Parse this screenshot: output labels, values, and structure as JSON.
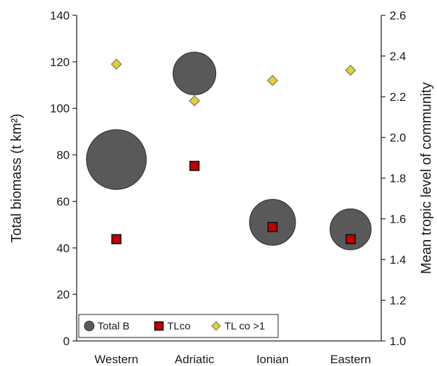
{
  "chart_data": {
    "type": "scatter",
    "categories": [
      "Western",
      "Adriatic",
      "Ionian",
      "Eastern"
    ],
    "y_left": {
      "label": "Total biomass (t km²)",
      "range": [
        0,
        140
      ],
      "ticks": [
        "0",
        "20",
        "40",
        "60",
        "80",
        "100",
        "120",
        "140"
      ]
    },
    "y_right": {
      "label": "Mean tropic level of community",
      "range": [
        1.0,
        2.6
      ],
      "ticks": [
        "1.0",
        "1.2",
        "1.4",
        "1.6",
        "1.8",
        "2.0",
        "2.2",
        "2.4",
        "2.6"
      ]
    },
    "series": [
      {
        "name": "Total B",
        "marker": "bubble",
        "axis": "left",
        "color": "#595959",
        "values": [
          78,
          115,
          51,
          48
        ],
        "bubble_size": [
          1.0,
          0.51,
          0.59,
          0.47
        ]
      },
      {
        "name": "TLco",
        "marker": "square",
        "axis": "right",
        "color": "#c00000",
        "values": [
          1.5,
          1.86,
          1.56,
          1.5
        ]
      },
      {
        "name": "TL co >1",
        "marker": "diamond",
        "axis": "right",
        "color": "#e8d21d",
        "values": [
          2.36,
          2.18,
          2.28,
          2.33
        ]
      }
    ],
    "grid": false,
    "legend_position": "bottom-left-inside"
  }
}
